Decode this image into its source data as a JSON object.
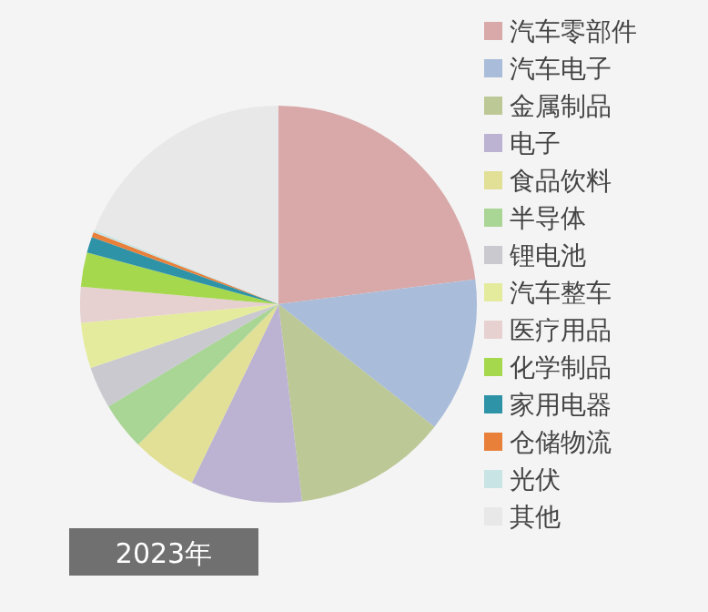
{
  "chart_data": {
    "type": "pie",
    "title": "2023年",
    "legend": "right",
    "categories": [
      "汽车零部件",
      "汽车电子",
      "金属制品",
      "电子",
      "食品饮料",
      "半导体",
      "锂电池",
      "汽车整车",
      "医疗用品",
      "化学制品",
      "家用电器",
      "仓储物流",
      "光伏",
      "其他"
    ],
    "values": [
      23.0,
      12.6,
      12.5,
      9.1,
      5.3,
      3.9,
      3.4,
      3.7,
      2.9,
      2.8,
      1.3,
      0.4,
      0.2,
      18.9
    ],
    "colors": [
      "#d9a9a9",
      "#a9bcd9",
      "#bcc896",
      "#bcb2d1",
      "#e2e096",
      "#a9d595",
      "#c9c9cf",
      "#e5eb9d",
      "#e6d0d0",
      "#a6d84e",
      "#2f93a8",
      "#e8803a",
      "#c8e4e4",
      "#e8e8e8"
    ]
  }
}
